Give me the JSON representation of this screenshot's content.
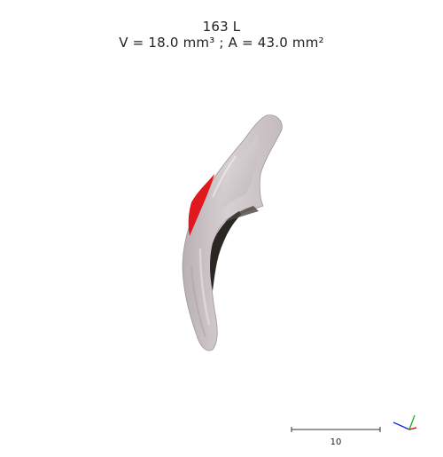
{
  "header": {
    "specimen_label": "163 L",
    "measurements": "V = 18.0 mm³ ; A = 43.0 mm²"
  },
  "viewer": {
    "object": "bone-fragment-3d-render",
    "colors": {
      "bone": "#cfc7c9",
      "bone_shadow": "#a9a1a5",
      "highlight": "#e9e6e8",
      "marker": "#e0191f",
      "cavity": "#2a2622"
    }
  },
  "scale_bar": {
    "label": "10"
  },
  "orientation_axes": {
    "icon": "xyz-axes-icon",
    "x_color": "#d11a1a",
    "y_color": "#2db52d",
    "z_color": "#1a2fd1"
  }
}
